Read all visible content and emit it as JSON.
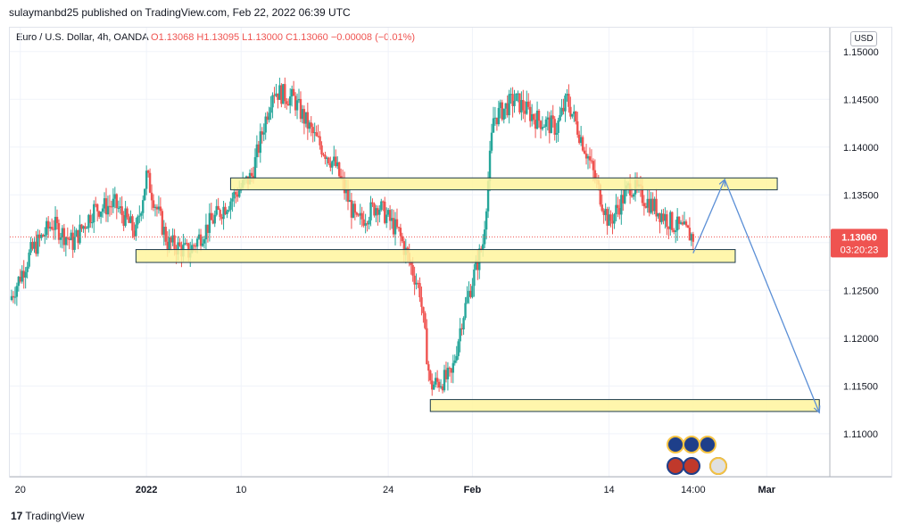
{
  "publisher_line": "sulaymanbd25 published on TradingView.com, Feb 22, 2022 06:39 UTC",
  "header": {
    "symbol_line": "Euro / U.S. Dollar, 4h, OANDA",
    "ohlc_line": "O1.13068  H1.13095  L1.13000  C1.13060  −0.00008 (−0.01%)"
  },
  "currency": "USD",
  "footer_brand": "TradingView",
  "logo_text": "17",
  "colors": {
    "up": "#26a69a",
    "down": "#ef5350",
    "zone_fill": "#fff59d",
    "zone_border": "#1b3a4b",
    "arrow": "#5b8fd6",
    "grid": "#f0f3fa",
    "price_label": "#ef5350"
  },
  "chart_data": {
    "type": "candlestick",
    "y_ticks": [
      "1.15000",
      "1.14500",
      "1.14000",
      "1.13500",
      "1.13000",
      "1.12500",
      "1.12000",
      "1.11500",
      "1.11000"
    ],
    "y_tick_values": [
      1.15,
      1.145,
      1.14,
      1.135,
      1.13,
      1.125,
      1.12,
      1.115,
      1.11
    ],
    "x_ticks": [
      "20",
      "2022",
      "10",
      "24",
      "Feb",
      "14",
      "14:00",
      "Mar"
    ],
    "current_price": "1.13060",
    "current_price_value": 1.1306,
    "countdown": "03:20:23",
    "ylim": [
      1.1055,
      1.1525
    ],
    "xlim_days": [
      "2021-12-19",
      "2022-03-07"
    ],
    "x_tick_dates": [
      "2021-12-20",
      "2022-01-01",
      "2022-01-10",
      "2022-01-24",
      "2022-02-01",
      "2022-02-14",
      "2022-02-22",
      "2022-03-01"
    ],
    "price_path": [
      [
        "2021-12-19",
        1.124
      ],
      [
        "2021-12-21",
        1.129
      ],
      [
        "2021-12-23",
        1.132
      ],
      [
        "2021-12-25",
        1.13
      ],
      [
        "2021-12-27",
        1.1335
      ],
      [
        "2021-12-29",
        1.134
      ],
      [
        "2021-12-31",
        1.131
      ],
      [
        "2022-01-01",
        1.137
      ],
      [
        "2022-01-03",
        1.13
      ],
      [
        "2022-01-05",
        1.129
      ],
      [
        "2022-01-07",
        1.132
      ],
      [
        "2022-01-09",
        1.1345
      ],
      [
        "2022-01-11",
        1.137
      ],
      [
        "2022-01-13",
        1.146
      ],
      [
        "2022-01-15",
        1.145
      ],
      [
        "2022-01-17",
        1.141
      ],
      [
        "2022-01-19",
        1.138
      ],
      [
        "2022-01-21",
        1.132
      ],
      [
        "2022-01-23",
        1.134
      ],
      [
        "2022-01-25",
        1.131
      ],
      [
        "2022-01-27",
        1.125
      ],
      [
        "2022-01-28",
        1.115
      ],
      [
        "2022-01-30",
        1.116
      ],
      [
        "2022-01-31",
        1.122
      ],
      [
        "2022-02-02",
        1.13
      ],
      [
        "2022-02-03",
        1.143
      ],
      [
        "2022-02-05",
        1.145
      ],
      [
        "2022-02-07",
        1.143
      ],
      [
        "2022-02-09",
        1.142
      ],
      [
        "2022-02-10",
        1.145
      ],
      [
        "2022-02-12",
        1.139
      ],
      [
        "2022-02-14",
        1.132
      ],
      [
        "2022-02-16",
        1.136
      ],
      [
        "2022-02-18",
        1.134
      ],
      [
        "2022-02-20",
        1.132
      ],
      [
        "2022-02-22",
        1.1306
      ]
    ],
    "zones": [
      {
        "from": "2022-01-09",
        "to": "2022-03-02",
        "low": 1.1359,
        "high": 1.1364
      },
      {
        "from": "2021-12-31",
        "to": "2022-02-26",
        "low": 1.1283,
        "high": 1.1289
      },
      {
        "from": "2022-01-28",
        "to": "2022-03-06",
        "low": 1.1127,
        "high": 1.1132
      }
    ],
    "arrows": [
      {
        "from": [
          "2022-02-22",
          1.1289
        ],
        "to": [
          "2022-02-25",
          1.1366
        ]
      },
      {
        "from": [
          "2022-02-25",
          1.1366
        ],
        "to": [
          "2022-03-06",
          1.1122
        ]
      }
    ]
  }
}
